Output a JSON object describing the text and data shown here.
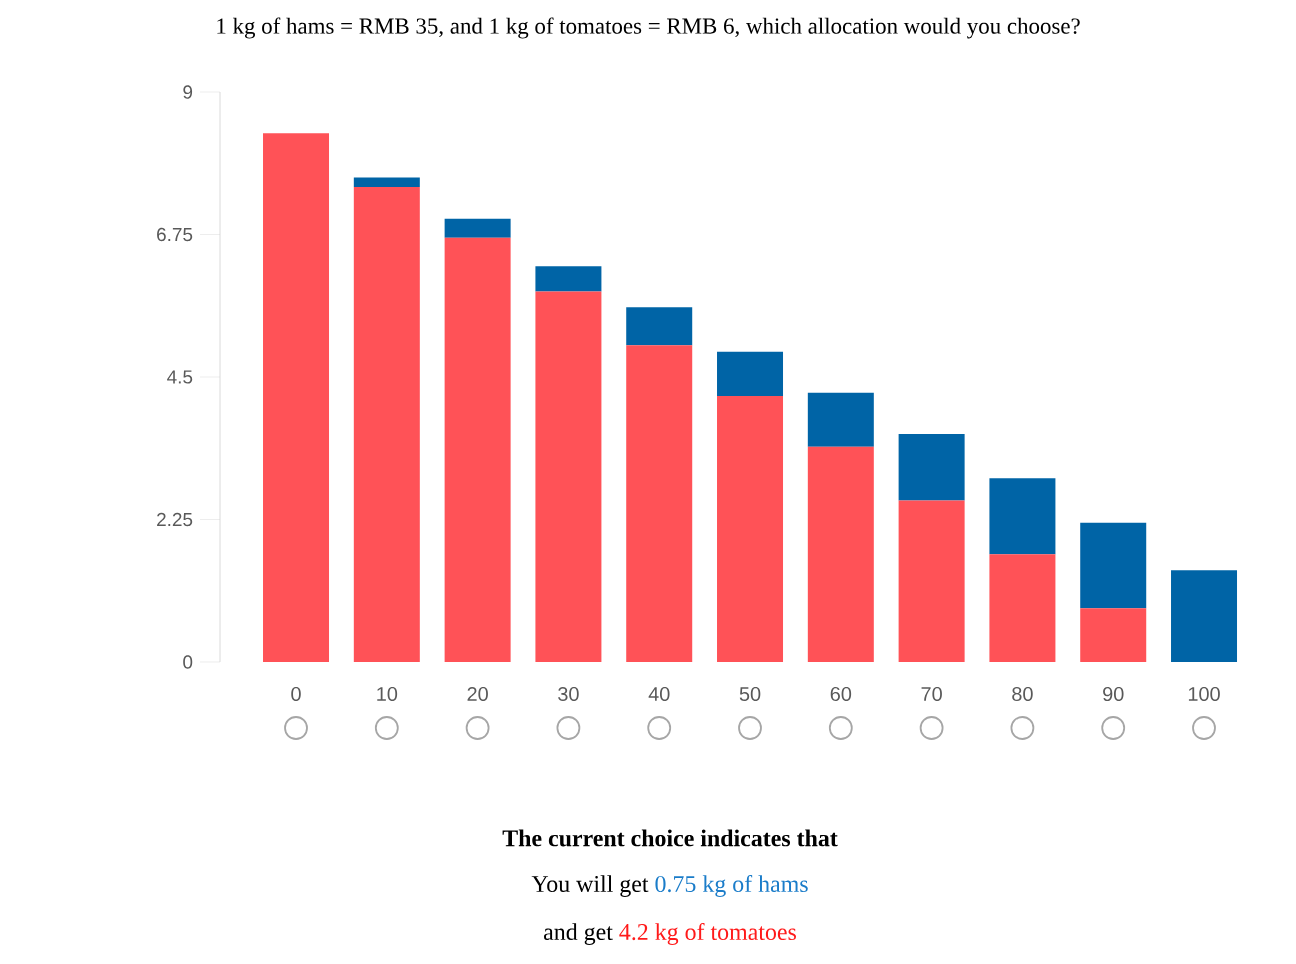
{
  "chart_data": {
    "type": "bar",
    "stacked": true,
    "title": "1 kg of hams = RMB 35, and 1 kg of tomatoes = RMB 6, which allocation would you choose?",
    "categories": [
      "0",
      "10",
      "20",
      "30",
      "40",
      "50",
      "60",
      "70",
      "80",
      "90",
      "100"
    ],
    "series": [
      {
        "color": "#ff5257",
        "values": [
          8.35,
          7.5,
          6.7,
          5.85,
          5.0,
          4.2,
          3.4,
          2.55,
          1.7,
          0.85,
          0
        ]
      },
      {
        "color": "#0064a6",
        "values": [
          0,
          0.15,
          0.3,
          0.4,
          0.6,
          0.7,
          0.85,
          1.05,
          1.2,
          1.35,
          1.45
        ]
      }
    ],
    "ylim": [
      0,
      9
    ],
    "yticks": [
      0,
      2.25,
      4.5,
      6.75,
      9
    ],
    "grid": false,
    "annotations": [
      "The current choice indicates that",
      "You will get",
      "0.75 kg of hams",
      "and get",
      "4.2 kg of tomatoes"
    ]
  }
}
